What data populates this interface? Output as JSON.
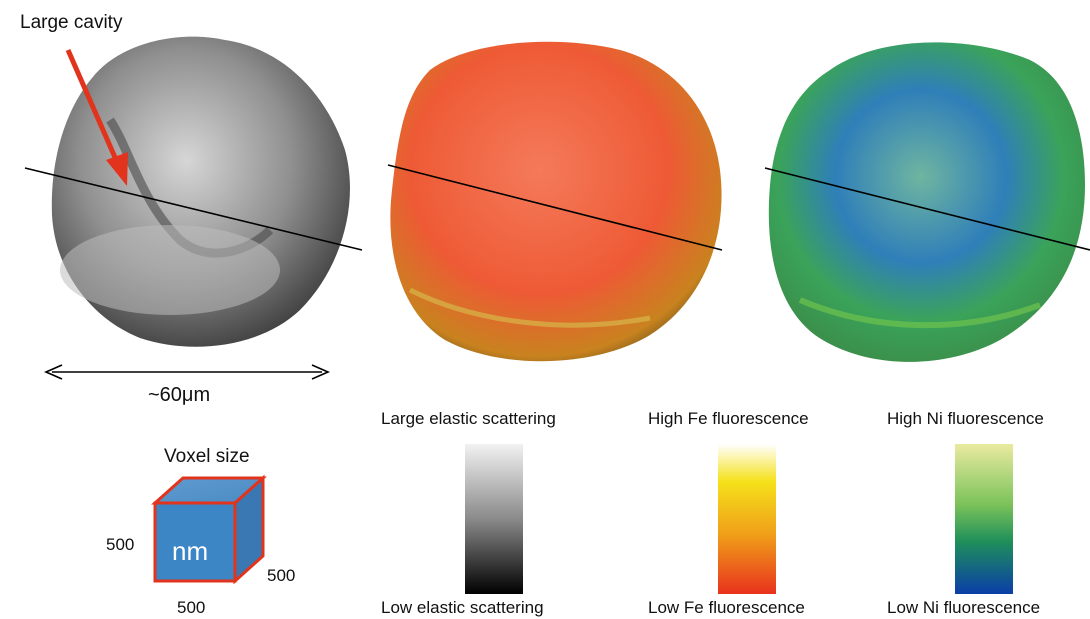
{
  "annotation": {
    "cavity_label": "Large cavity"
  },
  "scale": {
    "size_label": "~60μm"
  },
  "voxel": {
    "title": "Voxel size",
    "unit": "nm",
    "dim_left": "500",
    "dim_right": "500",
    "dim_bottom": "500"
  },
  "colorbars": [
    {
      "top_label": "Large elastic scattering",
      "bottom_label": "Low elastic scattering",
      "colors": [
        "#f2f2f2",
        "#8a8a8a",
        "#000000"
      ]
    },
    {
      "top_label": "High Fe fluorescence",
      "bottom_label": "Low Fe fluorescence",
      "colors": [
        "#ffffff",
        "#f5e11a",
        "#f0a019",
        "#e8321d"
      ]
    },
    {
      "top_label": "High Ni fluorescence",
      "bottom_label": "Low Ni fluorescence",
      "colors": [
        "#eaeaa0",
        "#7cc35a",
        "#1f8f5a",
        "#0a3ea8"
      ]
    }
  ],
  "colors": {
    "arrow": "#e2331c",
    "cube_fill": "#3d86c5",
    "cube_edge": "#e2331c"
  }
}
